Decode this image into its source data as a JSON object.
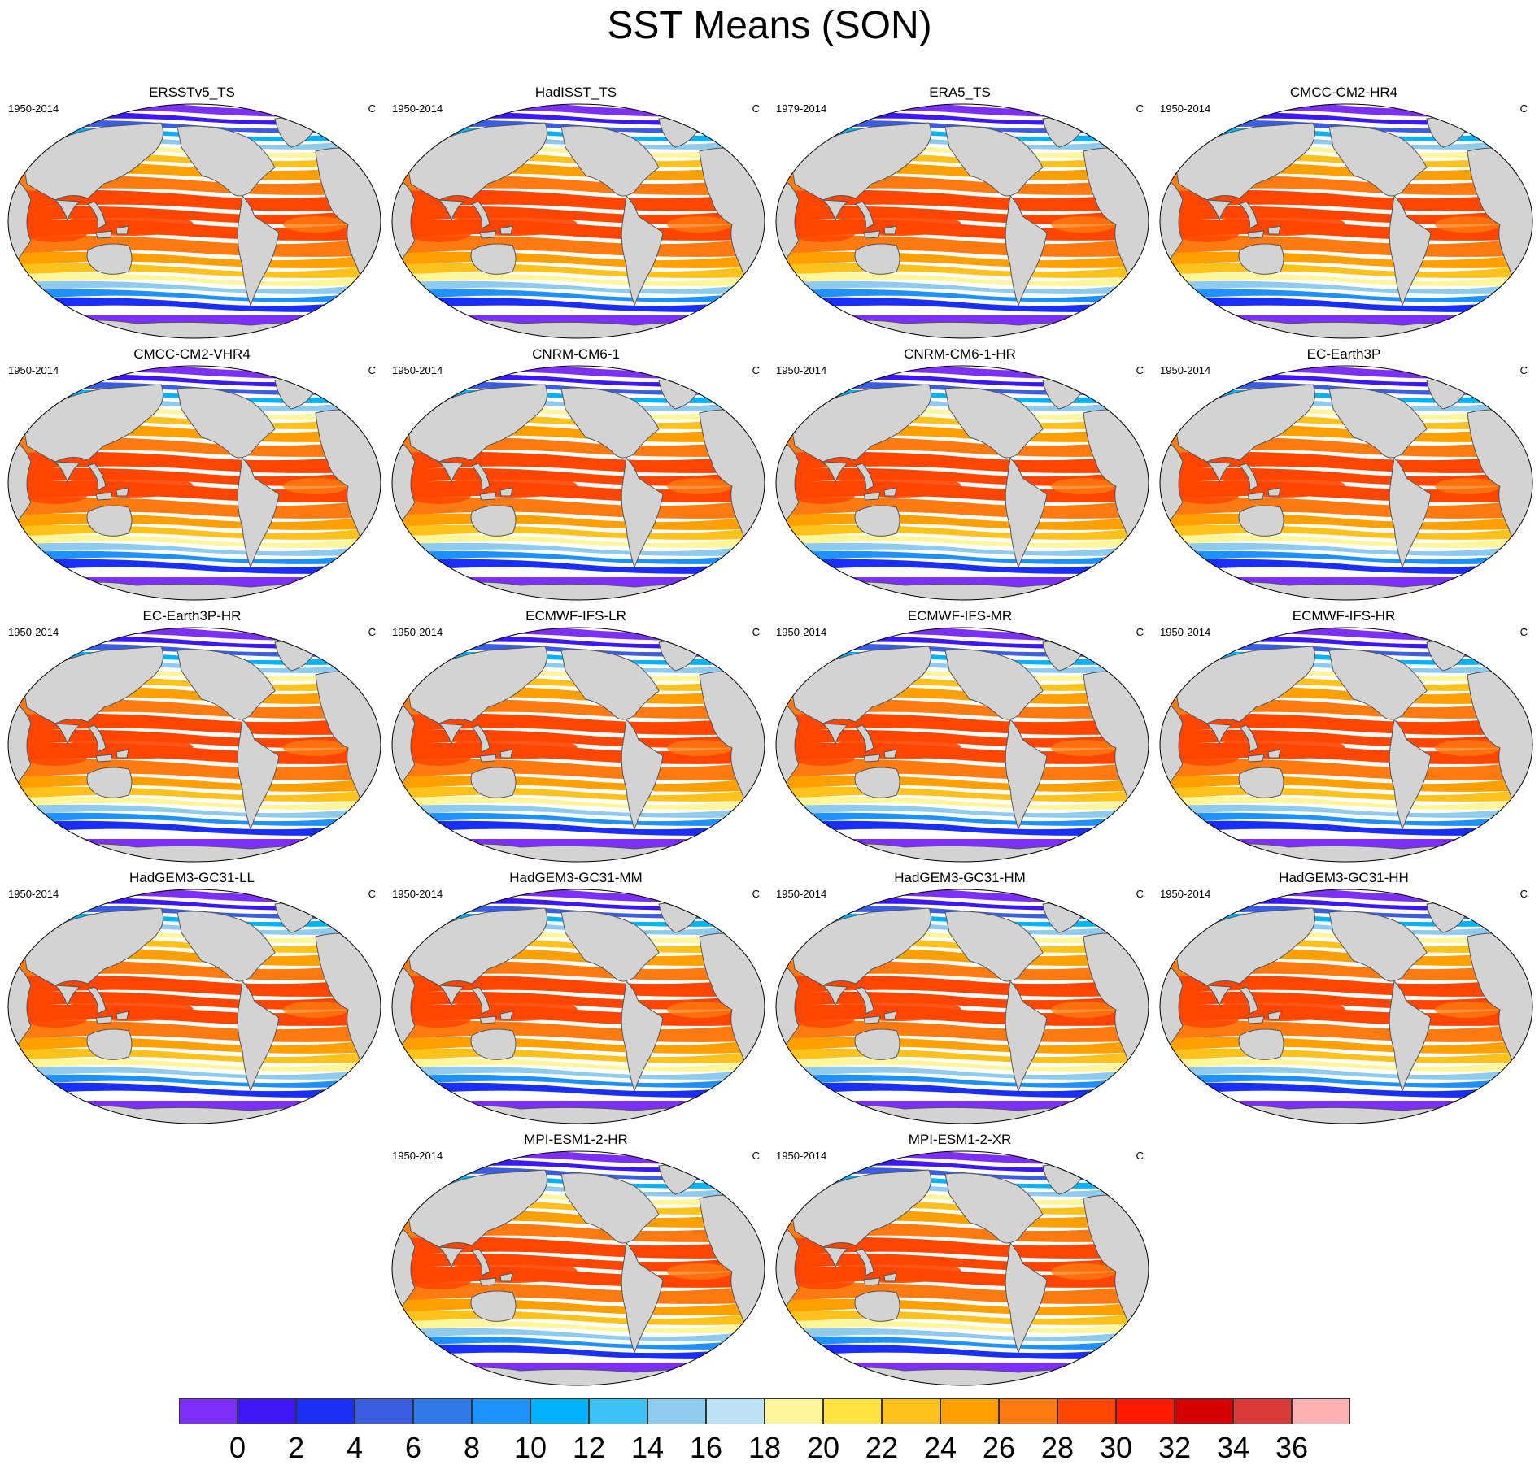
{
  "figure": {
    "title": "SST Means (SON)",
    "panels": [
      {
        "name": "ERSSTv5_TS",
        "years": "1950-2014",
        "units": "C"
      },
      {
        "name": "HadISST_TS",
        "years": "1950-2014",
        "units": "C"
      },
      {
        "name": "ERA5_TS",
        "years": "1979-2014",
        "units": "C"
      },
      {
        "name": "CMCC-CM2-HR4",
        "years": "1950-2014",
        "units": "C"
      },
      {
        "name": "CMCC-CM2-VHR4",
        "years": "1950-2014",
        "units": "C"
      },
      {
        "name": "CNRM-CM6-1",
        "years": "1950-2014",
        "units": "C"
      },
      {
        "name": "CNRM-CM6-1-HR",
        "years": "1950-2014",
        "units": "C"
      },
      {
        "name": "EC-Earth3P",
        "years": "1950-2014",
        "units": "C"
      },
      {
        "name": "EC-Earth3P-HR",
        "years": "1950-2014",
        "units": "C"
      },
      {
        "name": "ECMWF-IFS-LR",
        "years": "1950-2014",
        "units": "C"
      },
      {
        "name": "ECMWF-IFS-MR",
        "years": "1950-2014",
        "units": "C"
      },
      {
        "name": "ECMWF-IFS-HR",
        "years": "1950-2014",
        "units": "C"
      },
      {
        "name": "HadGEM3-GC31-LL",
        "years": "1950-2014",
        "units": "C"
      },
      {
        "name": "HadGEM3-GC31-MM",
        "years": "1950-2014",
        "units": "C"
      },
      {
        "name": "HadGEM3-GC31-HM",
        "years": "1950-2014",
        "units": "C"
      },
      {
        "name": "HadGEM3-GC31-HH",
        "years": "1950-2014",
        "units": "C"
      },
      {
        "name": "MPI-ESM1-2-HR",
        "years": "1950-2014",
        "units": "C"
      },
      {
        "name": "MPI-ESM1-2-XR",
        "years": "1950-2014",
        "units": "C"
      }
    ]
  },
  "colorbar": {
    "colors": [
      "#7b2ff7",
      "#3d18f5",
      "#1a2ef5",
      "#3b5de0",
      "#2f7ae8",
      "#1e90ff",
      "#00b2ff",
      "#3cc3f5",
      "#8ecbee",
      "#bde2f5",
      "#fff59a",
      "#ffe23f",
      "#ffc21c",
      "#ffa000",
      "#ff7a10",
      "#ff4500",
      "#ff1a00",
      "#d40000",
      "#d93a3a",
      "#ffb0b0"
    ],
    "labels": [
      "0",
      "2",
      "4",
      "6",
      "8",
      "10",
      "12",
      "14",
      "16",
      "18",
      "20",
      "22",
      "24",
      "26",
      "28",
      "30",
      "32",
      "34",
      "36"
    ]
  },
  "map_style": {
    "land_color": "#d3d3d3",
    "coast_color": "#555555"
  }
}
